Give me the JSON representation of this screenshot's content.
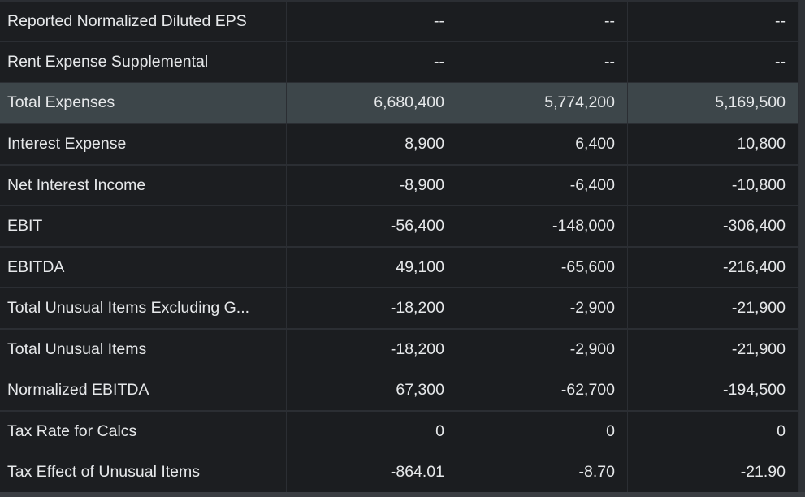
{
  "rows": [
    {
      "label": "Reported Normalized Diluted EPS",
      "values": [
        "--",
        "--",
        "--"
      ]
    },
    {
      "label": "Rent Expense Supplemental",
      "values": [
        "--",
        "--",
        "--"
      ]
    },
    {
      "label": "Total Expenses",
      "values": [
        "6,680,400",
        "5,774,200",
        "5,169,500"
      ]
    },
    {
      "label": "Interest Expense",
      "values": [
        "8,900",
        "6,400",
        "10,800"
      ]
    },
    {
      "label": "Net Interest Income",
      "values": [
        "-8,900",
        "-6,400",
        "-10,800"
      ]
    },
    {
      "label": "EBIT",
      "values": [
        "-56,400",
        "-148,000",
        "-306,400"
      ]
    },
    {
      "label": "EBITDA",
      "values": [
        "49,100",
        "-65,600",
        "-216,400"
      ]
    },
    {
      "label": "Total Unusual Items Excluding G...",
      "values": [
        "-18,200",
        "-2,900",
        "-21,900"
      ]
    },
    {
      "label": "Total Unusual Items",
      "values": [
        "-18,200",
        "-2,900",
        "-21,900"
      ]
    },
    {
      "label": "Normalized EBITDA",
      "values": [
        "67,300",
        "-62,700",
        "-194,500"
      ]
    },
    {
      "label": "Tax Rate for Calcs",
      "values": [
        "0",
        "0",
        "0"
      ]
    },
    {
      "label": "Tax Effect of Unusual Items",
      "values": [
        "-864.01",
        "-8.70",
        "-21.90"
      ]
    }
  ],
  "colors": {
    "highlight_row": "#3d464a",
    "cell_background": "#1b1d20",
    "text": "#e6e8ea"
  }
}
